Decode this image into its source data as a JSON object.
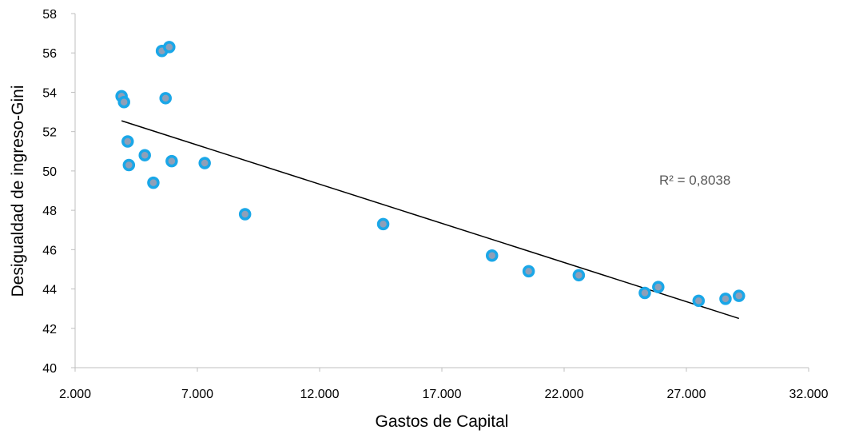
{
  "chart_data": {
    "type": "scatter",
    "title": "",
    "xlabel": "Gastos de Capital",
    "ylabel": "Desigualdad de ingreso-Gini",
    "xlim": [
      2000,
      32000
    ],
    "ylim": [
      40,
      58
    ],
    "x_ticks": [
      2000,
      7000,
      12000,
      17000,
      22000,
      27000,
      32000
    ],
    "x_tick_labels": [
      "2.000",
      "7.000",
      "12.000",
      "17.000",
      "22.000",
      "27.000",
      "32.000"
    ],
    "y_ticks": [
      40,
      42,
      44,
      46,
      48,
      50,
      52,
      54,
      56,
      58
    ],
    "y_tick_labels": [
      "40",
      "42",
      "44",
      "46",
      "48",
      "50",
      "52",
      "54",
      "56",
      "58"
    ],
    "points": [
      {
        "x": 3900,
        "y": 53.8
      },
      {
        "x": 4000,
        "y": 53.5
      },
      {
        "x": 4150,
        "y": 51.5
      },
      {
        "x": 4200,
        "y": 50.3
      },
      {
        "x": 4850,
        "y": 50.8
      },
      {
        "x": 5200,
        "y": 49.4
      },
      {
        "x": 5550,
        "y": 56.1
      },
      {
        "x": 5700,
        "y": 53.7
      },
      {
        "x": 5850,
        "y": 56.3
      },
      {
        "x": 5950,
        "y": 50.5
      },
      {
        "x": 7300,
        "y": 50.4
      },
      {
        "x": 8950,
        "y": 47.8
      },
      {
        "x": 14600,
        "y": 47.3
      },
      {
        "x": 19050,
        "y": 45.7
      },
      {
        "x": 20550,
        "y": 44.9
      },
      {
        "x": 22600,
        "y": 44.7
      },
      {
        "x": 25300,
        "y": 43.8
      },
      {
        "x": 25850,
        "y": 44.1
      },
      {
        "x": 27500,
        "y": 43.4
      },
      {
        "x": 28600,
        "y": 43.5
      },
      {
        "x": 29150,
        "y": 43.65
      }
    ],
    "trendline": {
      "type": "linear",
      "x_start": 3900,
      "y_start": 52.55,
      "x_end": 29150,
      "y_end": 42.5
    },
    "r_squared_label": "R² = 0,8038",
    "marker_color": "#8f9fb8",
    "marker_edge_color": "#1aa7e8",
    "trendline_color": "#000000",
    "axis_color": "#bfbfbf",
    "grid": false,
    "legend": "none"
  }
}
